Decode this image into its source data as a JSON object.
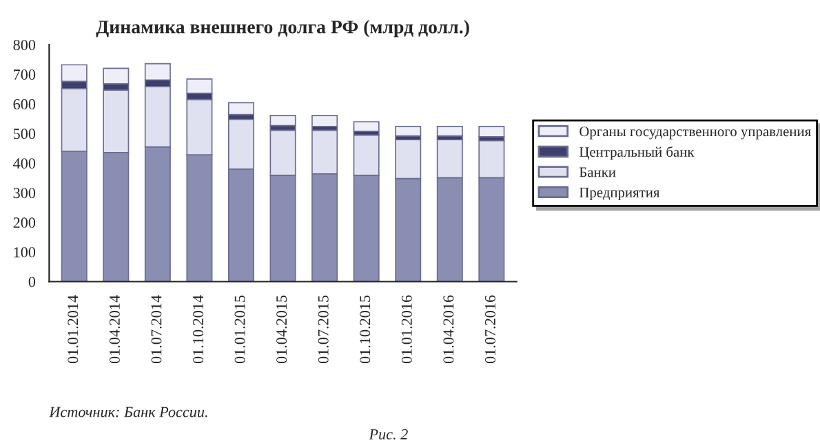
{
  "chart_data": {
    "type": "bar",
    "title": "Динамика внешнего долга РФ (млрд долл.)",
    "categories": [
      "01.01.2014",
      "01.04.2014",
      "01.07.2014",
      "01.10.2014",
      "01.01.2015",
      "01.04.2015",
      "01.07.2015",
      "01.10.2015",
      "01.01.2016",
      "01.04.2016",
      "01.07.2016"
    ],
    "stacked": true,
    "series": [
      {
        "name": "Предприятия",
        "color": "#8a8eb3",
        "values": [
          440,
          436,
          455,
          428,
          380,
          359,
          364,
          359,
          348,
          351,
          351
        ]
      },
      {
        "name": "Банки",
        "color": "#dfe1f0",
        "values": [
          212,
          211,
          204,
          187,
          168,
          152,
          147,
          136,
          131,
          128,
          125
        ]
      },
      {
        "name": "Центральный банк",
        "color": "#3d3f6e",
        "values": [
          24,
          21,
          22,
          21,
          16,
          16,
          13,
          13,
          13,
          13,
          13
        ]
      },
      {
        "name": "Органы государственного управления",
        "color": "#eeeef8",
        "values": [
          56,
          52,
          55,
          48,
          40,
          34,
          37,
          32,
          32,
          32,
          35
        ]
      }
    ],
    "ylim": [
      0,
      800
    ],
    "yticks": [
      0,
      100,
      200,
      300,
      400,
      500,
      600,
      700,
      800
    ],
    "legend": "right",
    "grid": false,
    "annotations": [
      "Источник: Банк России.",
      "Рис. 2"
    ]
  }
}
